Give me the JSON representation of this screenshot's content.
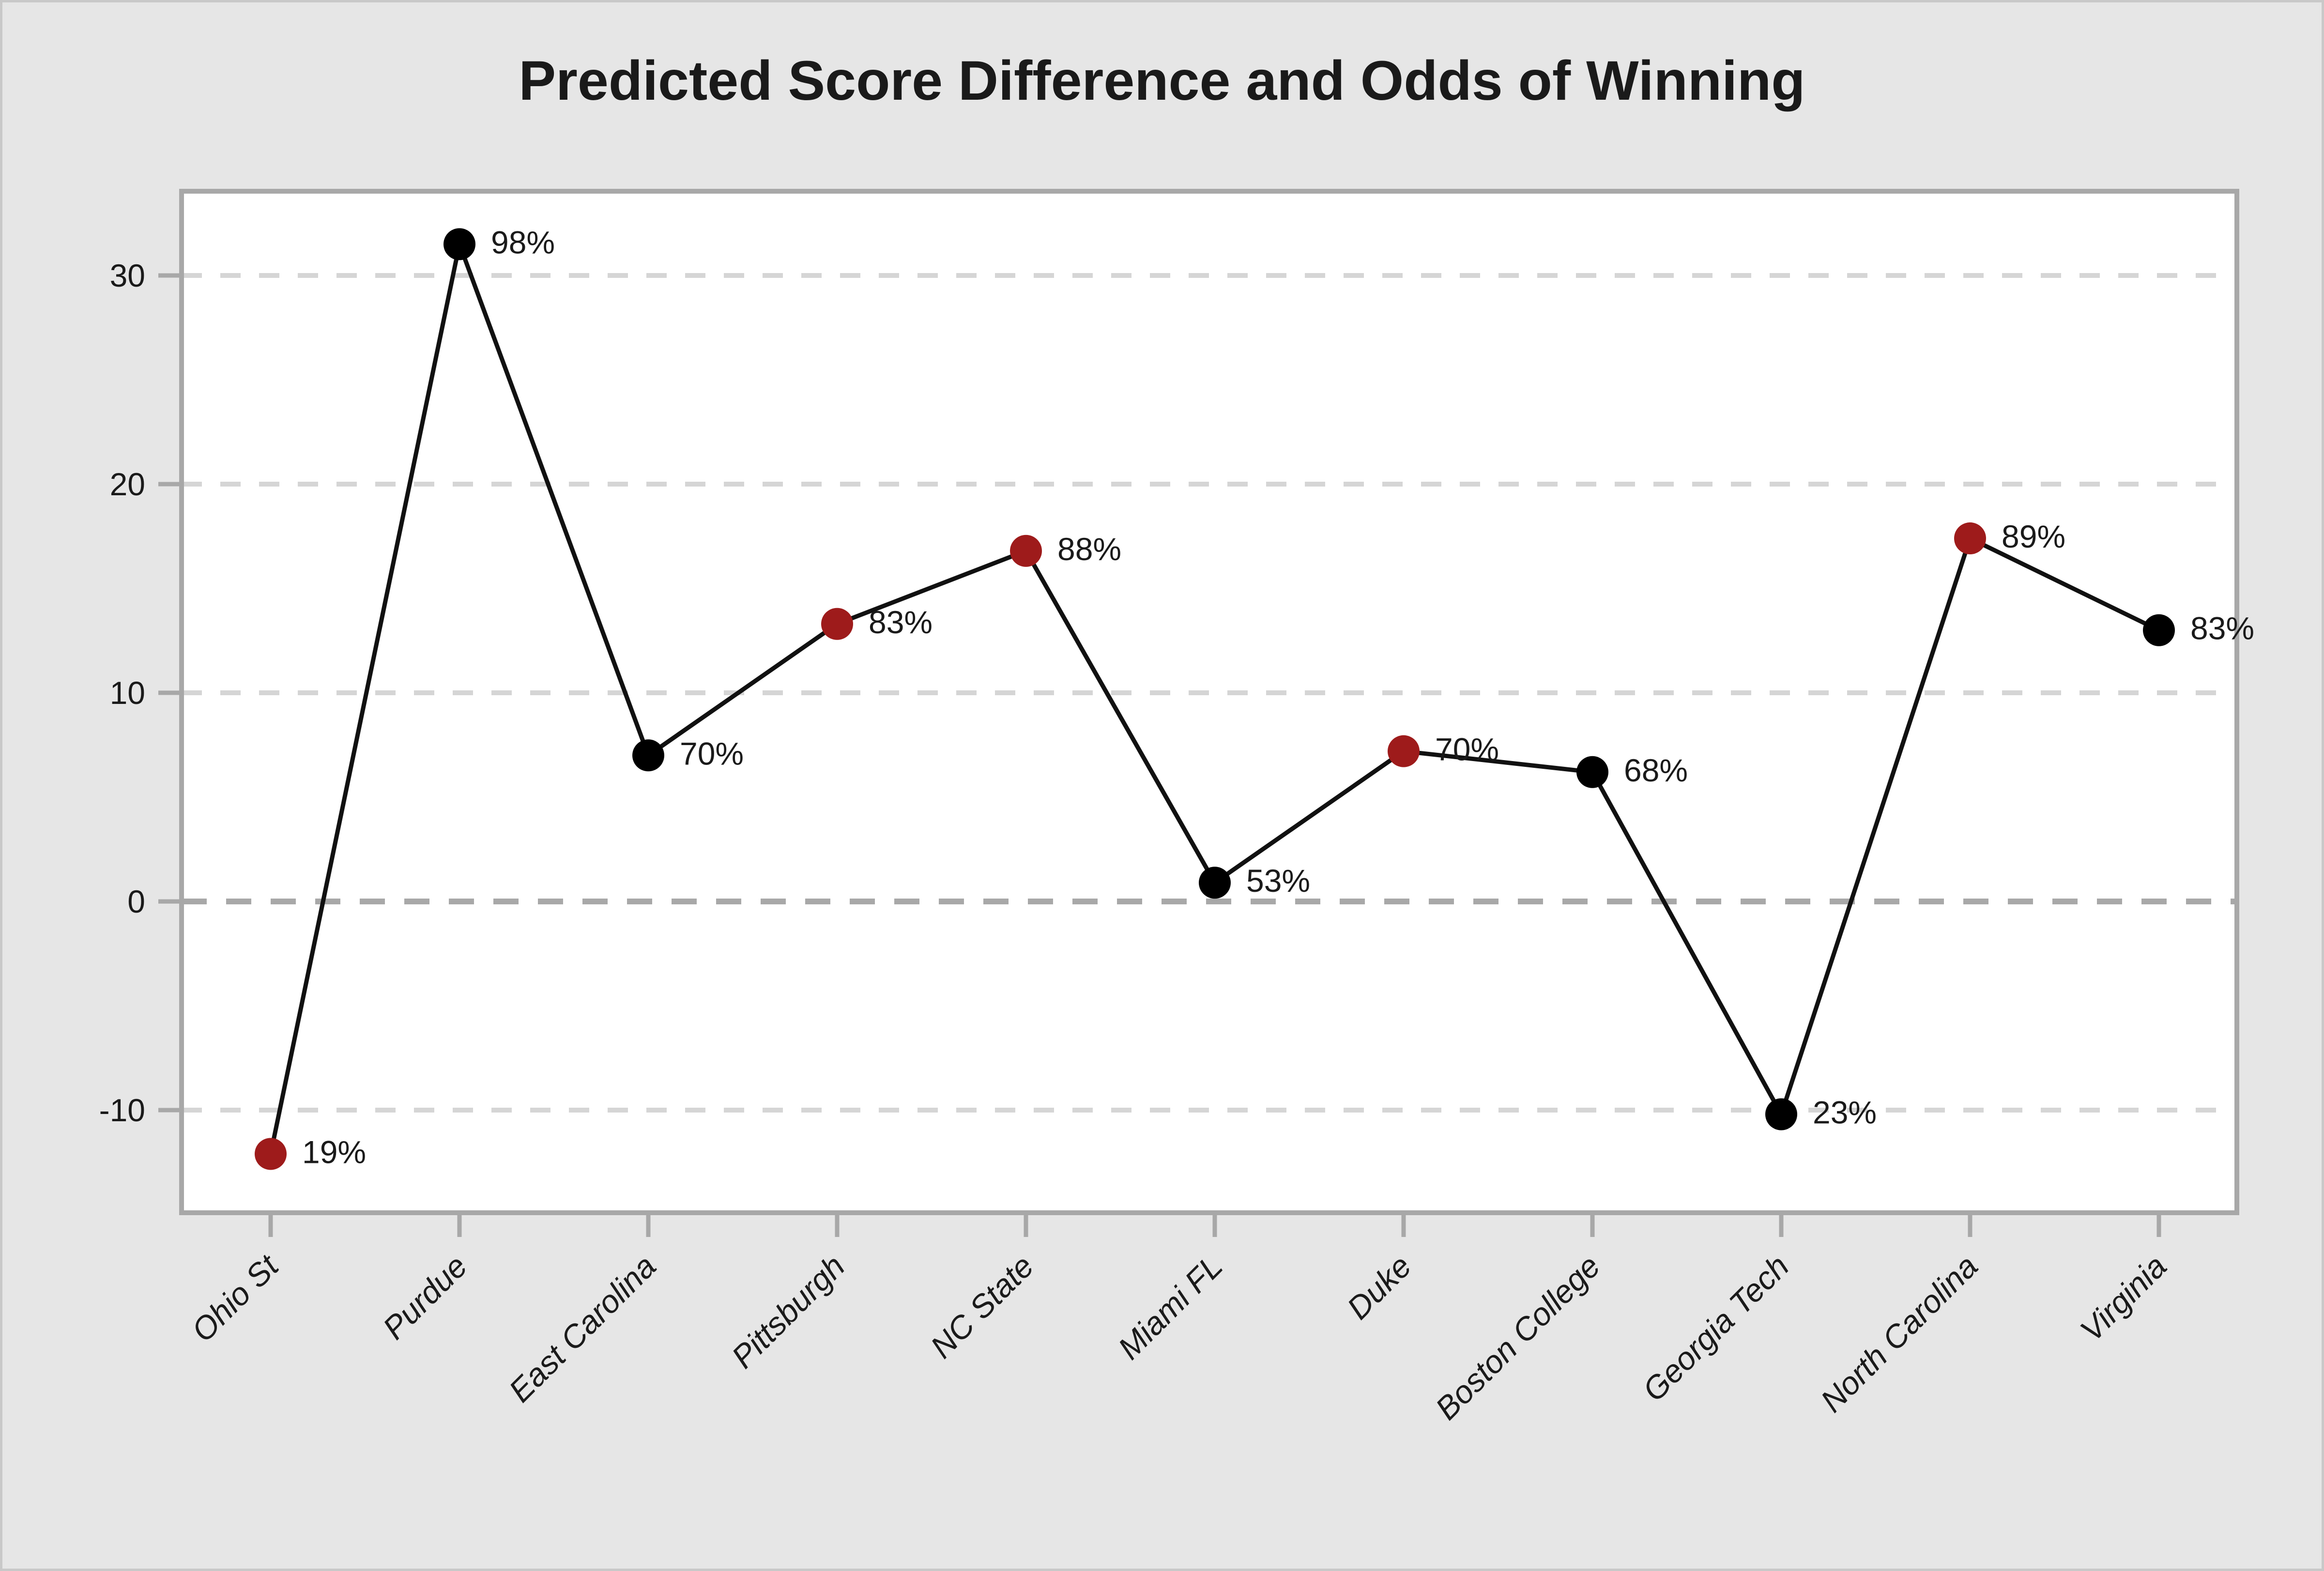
{
  "title": "Predicted Score Difference and Odds of Winning",
  "chart_data": {
    "type": "line",
    "title": "Predicted Score Difference and Odds of Winning",
    "categories": [
      "Ohio St",
      "Purdue",
      "East Carolina",
      "Pittsburgh",
      "NC State",
      "Miami FL",
      "Duke",
      "Boston College",
      "Georgia Tech",
      "North Carolina",
      "Virginia"
    ],
    "series": [
      {
        "name": "Predicted score difference",
        "values": [
          -12.1,
          31.5,
          7.0,
          13.3,
          16.8,
          0.9,
          7.2,
          6.2,
          -10.2,
          17.4,
          13.0
        ]
      }
    ],
    "point_labels": [
      "19%",
      "98%",
      "70%",
      "83%",
      "88%",
      "53%",
      "70%",
      "68%",
      "23%",
      "89%",
      "83%"
    ],
    "point_colors": [
      "red",
      "black",
      "black",
      "red",
      "red",
      "black",
      "red",
      "black",
      "black",
      "red",
      "black"
    ],
    "marker_palette": {
      "red": "#9E1B1B",
      "black": "#000000"
    },
    "y_ticks": [
      30,
      20,
      10,
      0,
      -10
    ],
    "y_tick_labels": [
      "30",
      "20",
      "10",
      "0",
      "-10"
    ],
    "ylim": [
      -14.9,
      34.0
    ],
    "xlabel": "",
    "ylabel": "",
    "grid": "horizontal-dashed",
    "zero_line": true,
    "legend": "none",
    "colors": {
      "figure_bg": "#E6E6E6",
      "outer_border": "#C8C8C8",
      "plot_bg": "#FFFFFF",
      "plot_border": "#A8A8A8",
      "gridline": "#D5D5D5",
      "zero_gridline": "#A8A8A8",
      "line": "#111111",
      "text": "#1A1A1A"
    }
  }
}
